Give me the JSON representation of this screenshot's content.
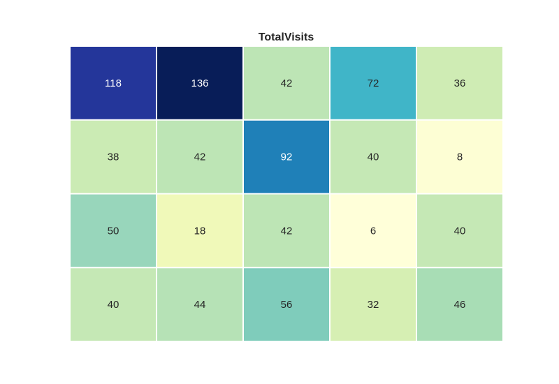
{
  "chart_data": {
    "type": "heatmap",
    "title": "TotalVisits",
    "xlabel": "",
    "ylabel": "",
    "rows": 4,
    "cols": 5,
    "values": [
      [
        118,
        136,
        42,
        72,
        36
      ],
      [
        38,
        42,
        92,
        40,
        8
      ],
      [
        50,
        18,
        42,
        6,
        40
      ],
      [
        40,
        44,
        56,
        32,
        46
      ]
    ],
    "colormap": "YlGnBu",
    "value_range": [
      6,
      136
    ],
    "colorbar": false,
    "grid": false,
    "cell_colors": [
      [
        "#24369a",
        "#081d58",
        "#bde5b5",
        "#40b5c8",
        "#cfecb4"
      ],
      [
        "#cbebb4",
        "#bde5b5",
        "#1f80b8",
        "#c5e8b5",
        "#fdfed4"
      ],
      [
        "#98d6bb",
        "#f0f9b9",
        "#bde5b5",
        "#ffffd9",
        "#c5e8b5"
      ],
      [
        "#c5e8b5",
        "#b6e2b6",
        "#7fccbb",
        "#d6efb3",
        "#a8ddb5"
      ]
    ]
  }
}
